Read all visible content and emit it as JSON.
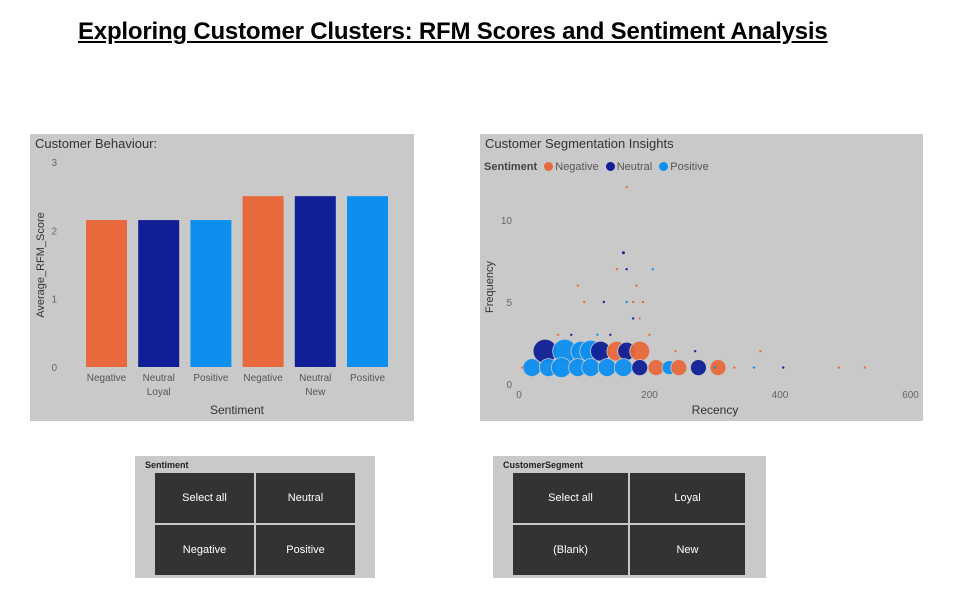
{
  "page_title": "Exploring Customer Clusters: RFM Scores and Sentiment Analysis",
  "colors": {
    "negative": "#e8693c",
    "neutral": "#101f96",
    "positive": "#0d8ff0",
    "panel": "#c9c9c9",
    "button": "#333333"
  },
  "bar_chart": {
    "title": "Customer Behaviour:"
  },
  "scatter_chart": {
    "title": "Customer Segmentation Insights",
    "legend_title": "Sentiment",
    "legend": [
      "Negative",
      "Neutral",
      "Positive"
    ]
  },
  "chart_data": [
    {
      "type": "bar",
      "title": "Customer Behaviour:",
      "xlabel": "Sentiment",
      "ylabel": "Average_RFM_Score",
      "ylim": [
        0,
        3
      ],
      "yticks": [
        0,
        1,
        2,
        3
      ],
      "categories": [
        {
          "sentiment": "Negative",
          "segment": "Loyal",
          "series": "negative"
        },
        {
          "sentiment": "Neutral",
          "segment": "Loyal",
          "series": "neutral"
        },
        {
          "sentiment": "Positive",
          "segment": "Loyal",
          "series": "positive"
        },
        {
          "sentiment": "Negative",
          "segment": "New",
          "series": "negative"
        },
        {
          "sentiment": "Neutral",
          "segment": "New",
          "series": "neutral"
        },
        {
          "sentiment": "Positive",
          "segment": "New",
          "series": "positive"
        }
      ],
      "group_labels": [
        {
          "text": "Loyal",
          "under": 1
        },
        {
          "text": "New",
          "under": 4
        }
      ],
      "values": [
        2.15,
        2.15,
        2.15,
        2.5,
        2.5,
        2.5
      ]
    },
    {
      "type": "scatter",
      "title": "Customer Segmentation Insights",
      "xlabel": "Recency",
      "ylabel": "Frequency",
      "xlim": [
        0,
        600
      ],
      "ylim": [
        0,
        12
      ],
      "xticks": [
        0,
        200,
        400,
        600
      ],
      "yticks": [
        0,
        5,
        10
      ],
      "points": [
        {
          "x": 40,
          "y": 2,
          "size": 12,
          "series": "neutral"
        },
        {
          "x": 70,
          "y": 2,
          "size": 12,
          "series": "positive"
        },
        {
          "x": 95,
          "y": 2,
          "size": 10,
          "series": "positive"
        },
        {
          "x": 110,
          "y": 2,
          "size": 11,
          "series": "positive"
        },
        {
          "x": 125,
          "y": 2,
          "size": 10,
          "series": "neutral"
        },
        {
          "x": 150,
          "y": 2,
          "size": 10,
          "series": "negative"
        },
        {
          "x": 165,
          "y": 2,
          "size": 9,
          "series": "neutral"
        },
        {
          "x": 185,
          "y": 2,
          "size": 10,
          "series": "negative"
        },
        {
          "x": 20,
          "y": 1,
          "size": 9,
          "series": "positive"
        },
        {
          "x": 45,
          "y": 1,
          "size": 9,
          "series": "positive"
        },
        {
          "x": 65,
          "y": 1,
          "size": 10,
          "series": "positive"
        },
        {
          "x": 90,
          "y": 1,
          "size": 9,
          "series": "positive"
        },
        {
          "x": 110,
          "y": 1,
          "size": 9,
          "series": "positive"
        },
        {
          "x": 135,
          "y": 1,
          "size": 9,
          "series": "positive"
        },
        {
          "x": 160,
          "y": 1,
          "size": 9,
          "series": "positive"
        },
        {
          "x": 185,
          "y": 1,
          "size": 8,
          "series": "neutral"
        },
        {
          "x": 210,
          "y": 1,
          "size": 8,
          "series": "negative"
        },
        {
          "x": 230,
          "y": 1,
          "size": 7,
          "series": "positive"
        },
        {
          "x": 245,
          "y": 1,
          "size": 8,
          "series": "negative"
        },
        {
          "x": 275,
          "y": 1,
          "size": 8,
          "series": "neutral"
        },
        {
          "x": 305,
          "y": 1,
          "size": 8,
          "series": "negative"
        },
        {
          "x": 5,
          "y": 1,
          "size": 1.2,
          "series": "negative"
        },
        {
          "x": 100,
          "y": 5,
          "size": 1.2,
          "series": "negative"
        },
        {
          "x": 130,
          "y": 5,
          "size": 1.2,
          "series": "neutral"
        },
        {
          "x": 90,
          "y": 6,
          "size": 1.2,
          "series": "negative"
        },
        {
          "x": 150,
          "y": 7,
          "size": 1.2,
          "series": "negative"
        },
        {
          "x": 160,
          "y": 8,
          "size": 1.5,
          "series": "neutral"
        },
        {
          "x": 165,
          "y": 7,
          "size": 1.2,
          "series": "neutral"
        },
        {
          "x": 175,
          "y": 5,
          "size": 1.2,
          "series": "negative"
        },
        {
          "x": 190,
          "y": 5,
          "size": 1.2,
          "series": "negative"
        },
        {
          "x": 205,
          "y": 7,
          "size": 1.2,
          "series": "positive"
        },
        {
          "x": 165,
          "y": 5,
          "size": 1.2,
          "series": "positive"
        },
        {
          "x": 180,
          "y": 6,
          "size": 1.2,
          "series": "negative"
        },
        {
          "x": 165,
          "y": 12,
          "size": 1.2,
          "series": "negative"
        },
        {
          "x": 185,
          "y": 4,
          "size": 1.2,
          "series": "negative"
        },
        {
          "x": 175,
          "y": 4,
          "size": 1.2,
          "series": "neutral"
        },
        {
          "x": 60,
          "y": 3,
          "size": 1.2,
          "series": "negative"
        },
        {
          "x": 80,
          "y": 3,
          "size": 1.2,
          "series": "neutral"
        },
        {
          "x": 120,
          "y": 3,
          "size": 1.2,
          "series": "positive"
        },
        {
          "x": 200,
          "y": 3,
          "size": 1.2,
          "series": "negative"
        },
        {
          "x": 140,
          "y": 3,
          "size": 1.2,
          "series": "neutral"
        },
        {
          "x": 240,
          "y": 2,
          "size": 1.2,
          "series": "negative"
        },
        {
          "x": 270,
          "y": 2,
          "size": 1.2,
          "series": "neutral"
        },
        {
          "x": 300,
          "y": 1,
          "size": 1.2,
          "series": "positive"
        },
        {
          "x": 330,
          "y": 1,
          "size": 1.2,
          "series": "negative"
        },
        {
          "x": 360,
          "y": 1,
          "size": 1.2,
          "series": "positive"
        },
        {
          "x": 370,
          "y": 2,
          "size": 1.2,
          "series": "negative"
        },
        {
          "x": 405,
          "y": 1,
          "size": 1.2,
          "series": "neutral"
        },
        {
          "x": 490,
          "y": 1,
          "size": 1.2,
          "series": "negative"
        },
        {
          "x": 530,
          "y": 1,
          "size": 1.2,
          "series": "negative"
        }
      ]
    }
  ],
  "sentiment_slicer": {
    "title": "Sentiment",
    "options": [
      "Select all",
      "Neutral",
      "Negative",
      "Positive"
    ]
  },
  "segment_slicer": {
    "title": "CustomerSegment",
    "options": [
      "Select all",
      "Loyal",
      "(Blank)",
      "New"
    ]
  }
}
